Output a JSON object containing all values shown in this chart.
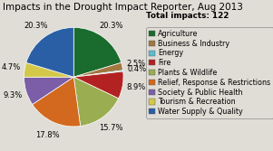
{
  "title": "Impacts in the Drought Impact Reporter, Aug 2013",
  "total_label": "Total impacts: 122",
  "categories": [
    "Agriculture",
    "Business & Industry",
    "Energy",
    "Fire",
    "Plants & Wildlife",
    "Relief, Response & Restrictions",
    "Society & Public Health",
    "Tourism & Recreation",
    "Water Supply & Quality"
  ],
  "percentages": [
    20.3,
    2.5,
    0.4,
    8.9,
    15.7,
    17.8,
    9.3,
    4.7,
    20.3
  ],
  "colors": [
    "#1a6b2e",
    "#a07840",
    "#5bbccc",
    "#b22222",
    "#9aad50",
    "#d2691e",
    "#7b5ea7",
    "#d4c84a",
    "#2b5fa5"
  ],
  "startangle": 90,
  "pct_labels": [
    "20.3%",
    "2.5%",
    "0.4%",
    "8.9%",
    "15.7%",
    "17.8%",
    "9.3%",
    "4.7%",
    "20.3%"
  ],
  "title_fontsize": 7.5,
  "legend_fontsize": 5.8,
  "label_fontsize": 6.0,
  "bg_color": "#e0ddd6"
}
